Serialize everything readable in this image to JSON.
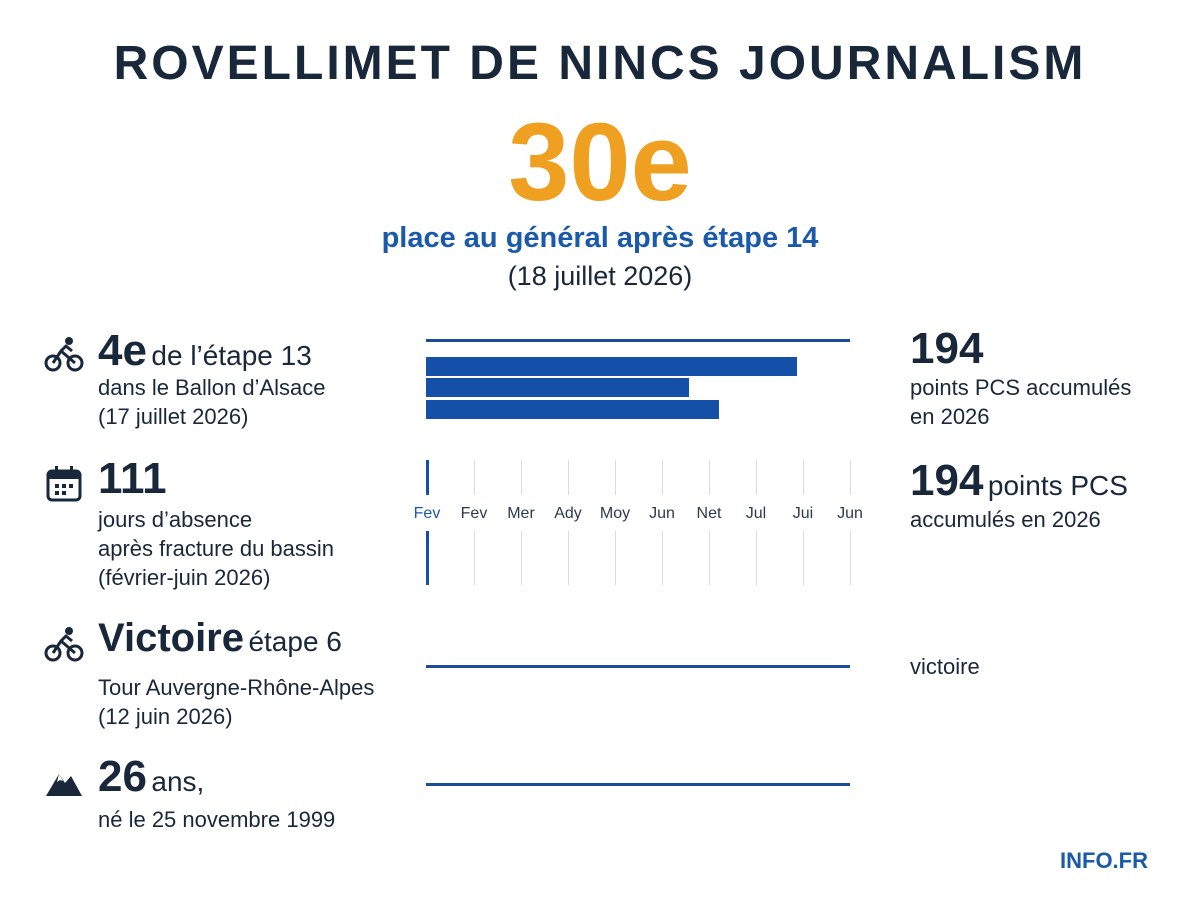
{
  "header": {
    "title": "ROVELLIMET DE NINCS JOURNALISM",
    "rank": "30e",
    "rank_caption": "place au général après étape 14",
    "rank_date": "(18 juillet 2026)"
  },
  "colors": {
    "accent": "#f0a020",
    "primary_blue": "#1a5aaa",
    "bar_blue": "#1450a8",
    "text_dark": "#18283a"
  },
  "rows": [
    {
      "icon": "cyclist-icon",
      "big": "4e",
      "label": "de l’étape 13",
      "line1": "dans le Ballon d’Alsace",
      "line2": "(17 juillet 2026)"
    },
    {
      "icon": "calendar-icon",
      "big": "111",
      "line1": "jours d’absence",
      "line2": "après fracture du bassin",
      "line3": "(février-juin 2026)"
    },
    {
      "icon": "cyclist-icon",
      "big": "Victoire",
      "label": "étape 6",
      "line1": "Tour Auvergne-Rhône-Alpes",
      "line2": "(12 juin 2026)"
    },
    {
      "icon": "mountain-icon",
      "big": "26",
      "label": "ans,",
      "line1": "né le 25 novembre 1999"
    }
  ],
  "timeline": {
    "months": [
      "Fev",
      "Fev",
      "Mer",
      "Ady",
      "Moy",
      "Jun",
      "Net",
      "Jul",
      "Jui",
      "Jun"
    ],
    "bars": [
      0.875,
      0.62,
      0.69
    ]
  },
  "right": {
    "stat1_value": "194",
    "stat1_line1": "points PCS accumulés",
    "stat1_line2": "en 2026",
    "stat2_value": "194",
    "stat2_unit": "points PCS",
    "stat2_line1": "accumulés en 2026",
    "stat3_text": "victoire"
  },
  "footer": {
    "brand": "INFO.FR"
  }
}
